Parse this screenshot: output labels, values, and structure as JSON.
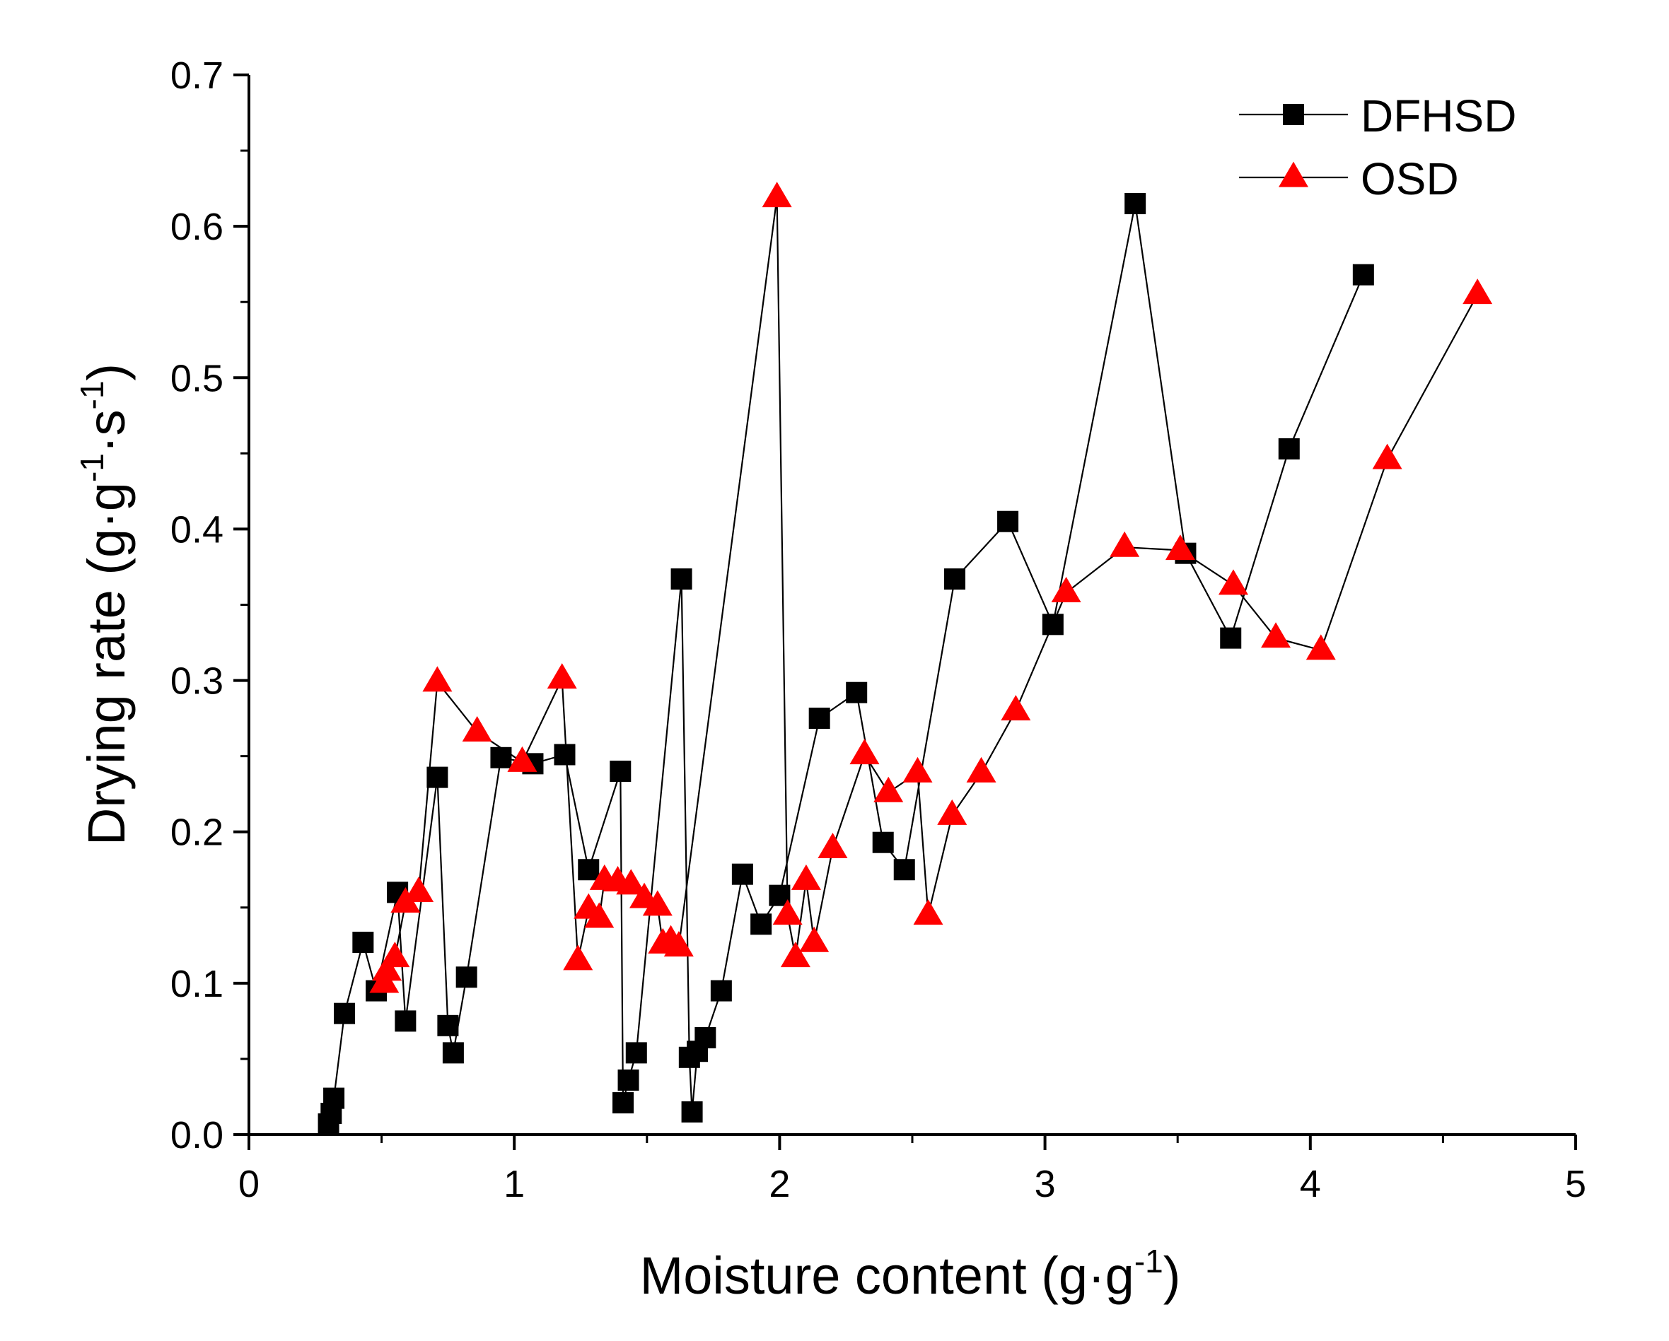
{
  "chart_data": {
    "type": "line",
    "title": "",
    "xlabel": "Moisture content (g·g⁻¹)",
    "xlabel_text": "Moisture content (g·g",
    "xlabel_sup": "-1",
    "xlabel_close": ")",
    "ylabel_text": "Drying rate (g·g",
    "ylabel_sup1": "-1",
    "ylabel_mid": "·s",
    "ylabel_sup2": "-1",
    "ylabel_close": ")",
    "xlim": [
      0,
      5
    ],
    "ylim": [
      0,
      0.7
    ],
    "xticks": [
      0,
      1,
      2,
      3,
      4,
      5
    ],
    "xtick_labels": [
      "0",
      "1",
      "2",
      "3",
      "4",
      "5"
    ],
    "yticks": [
      0,
      0.1,
      0.2,
      0.3,
      0.4,
      0.5,
      0.6,
      0.7
    ],
    "ytick_labels": [
      "0.0",
      "0.1",
      "0.2",
      "0.3",
      "0.4",
      "0.5",
      "0.6",
      "0.7"
    ],
    "grid": false,
    "legend_position": "top-right",
    "series": [
      {
        "name": "DFHSD",
        "marker": "square",
        "color": "#000000",
        "line_color": "#000000",
        "points": [
          [
            0.3,
            0.007
          ],
          [
            0.31,
            0.014
          ],
          [
            0.32,
            0.024
          ],
          [
            0.36,
            0.08
          ],
          [
            0.43,
            0.127
          ],
          [
            0.48,
            0.095
          ],
          [
            0.56,
            0.16
          ],
          [
            0.59,
            0.075
          ],
          [
            0.71,
            0.236
          ],
          [
            0.75,
            0.072
          ],
          [
            0.77,
            0.054
          ],
          [
            0.82,
            0.104
          ],
          [
            0.95,
            0.249
          ],
          [
            1.07,
            0.245
          ],
          [
            1.19,
            0.251
          ],
          [
            1.28,
            0.175
          ],
          [
            1.4,
            0.24
          ],
          [
            1.41,
            0.021
          ],
          [
            1.43,
            0.036
          ],
          [
            1.46,
            0.054
          ],
          [
            1.63,
            0.367
          ],
          [
            1.66,
            0.051
          ],
          [
            1.67,
            0.015
          ],
          [
            1.69,
            0.055
          ],
          [
            1.72,
            0.064
          ],
          [
            1.78,
            0.095
          ],
          [
            1.86,
            0.172
          ],
          [
            1.93,
            0.139
          ],
          [
            2.0,
            0.158
          ],
          [
            2.15,
            0.275
          ],
          [
            2.29,
            0.292
          ],
          [
            2.39,
            0.193
          ],
          [
            2.47,
            0.175
          ],
          [
            2.66,
            0.367
          ],
          [
            2.86,
            0.405
          ],
          [
            3.03,
            0.337
          ],
          [
            3.34,
            0.615
          ],
          [
            3.53,
            0.384
          ],
          [
            3.7,
            0.328
          ],
          [
            3.92,
            0.453
          ],
          [
            4.2,
            0.568
          ]
        ]
      },
      {
        "name": "OSD",
        "marker": "triangle",
        "color": "#ff0000",
        "line_color": "#000000",
        "points": [
          [
            0.51,
            0.1
          ],
          [
            0.52,
            0.108
          ],
          [
            0.55,
            0.117
          ],
          [
            0.59,
            0.153
          ],
          [
            0.64,
            0.16
          ],
          [
            0.71,
            0.299
          ],
          [
            0.86,
            0.266
          ],
          [
            1.03,
            0.246
          ],
          [
            1.18,
            0.301
          ],
          [
            1.24,
            0.115
          ],
          [
            1.28,
            0.149
          ],
          [
            1.32,
            0.143
          ],
          [
            1.34,
            0.168
          ],
          [
            1.39,
            0.167
          ],
          [
            1.44,
            0.165
          ],
          [
            1.49,
            0.156
          ],
          [
            1.54,
            0.151
          ],
          [
            1.56,
            0.126
          ],
          [
            1.59,
            0.128
          ],
          [
            1.62,
            0.124
          ],
          [
            1.99,
            0.619
          ],
          [
            2.03,
            0.145
          ],
          [
            2.06,
            0.117
          ],
          [
            2.1,
            0.168
          ],
          [
            2.13,
            0.127
          ],
          [
            2.2,
            0.189
          ],
          [
            2.32,
            0.251
          ],
          [
            2.41,
            0.226
          ],
          [
            2.52,
            0.239
          ],
          [
            2.56,
            0.145
          ],
          [
            2.65,
            0.211
          ],
          [
            2.76,
            0.239
          ],
          [
            2.89,
            0.28
          ],
          [
            3.08,
            0.358
          ],
          [
            3.3,
            0.388
          ],
          [
            3.51,
            0.386
          ],
          [
            3.71,
            0.363
          ],
          [
            3.87,
            0.328
          ],
          [
            4.04,
            0.32
          ],
          [
            4.29,
            0.446
          ],
          [
            4.63,
            0.555
          ]
        ]
      }
    ]
  }
}
